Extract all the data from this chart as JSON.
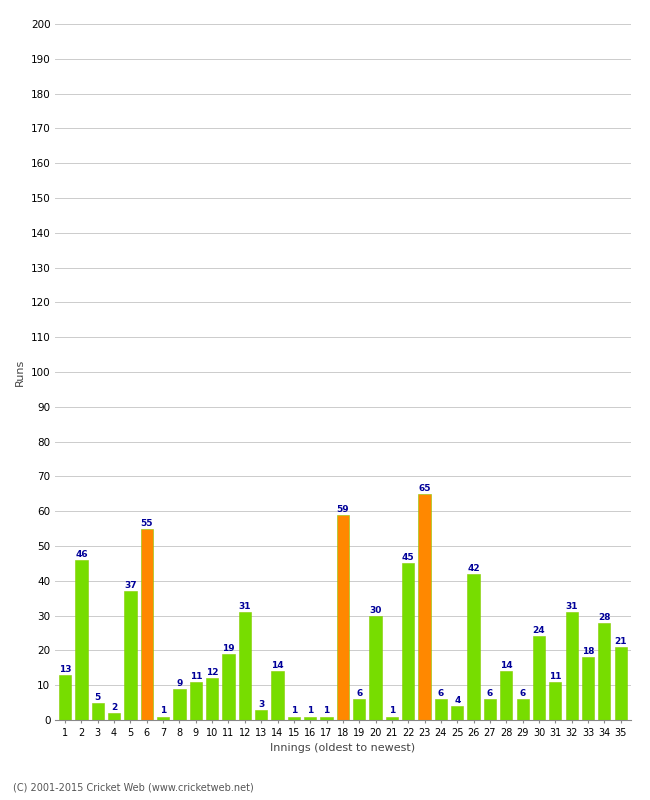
{
  "innings": [
    1,
    2,
    3,
    4,
    5,
    6,
    7,
    8,
    9,
    10,
    11,
    12,
    13,
    14,
    15,
    16,
    17,
    18,
    19,
    20,
    21,
    22,
    23,
    24,
    25,
    26,
    27,
    28,
    29,
    30,
    31,
    32,
    33,
    34,
    35
  ],
  "runs": [
    13,
    46,
    5,
    2,
    37,
    55,
    1,
    9,
    11,
    12,
    19,
    31,
    3,
    14,
    1,
    1,
    1,
    59,
    6,
    30,
    1,
    45,
    65,
    6,
    4,
    42,
    6,
    14,
    6,
    24,
    11,
    31,
    18,
    28,
    21
  ],
  "colors": [
    "#77dd00",
    "#77dd00",
    "#77dd00",
    "#77dd00",
    "#77dd00",
    "#ff8800",
    "#77dd00",
    "#77dd00",
    "#77dd00",
    "#77dd00",
    "#77dd00",
    "#77dd00",
    "#77dd00",
    "#77dd00",
    "#77dd00",
    "#77dd00",
    "#77dd00",
    "#ff8800",
    "#77dd00",
    "#77dd00",
    "#77dd00",
    "#77dd00",
    "#ff8800",
    "#77dd00",
    "#77dd00",
    "#77dd00",
    "#77dd00",
    "#77dd00",
    "#77dd00",
    "#77dd00",
    "#77dd00",
    "#77dd00",
    "#77dd00",
    "#77dd00",
    "#77dd00"
  ],
  "ylim": [
    0,
    200
  ],
  "yticks": [
    0,
    10,
    20,
    30,
    40,
    50,
    60,
    70,
    80,
    90,
    100,
    110,
    120,
    130,
    140,
    150,
    160,
    170,
    180,
    190,
    200
  ],
  "ylabel": "Runs",
  "xlabel": "Innings (oldest to newest)",
  "footnote": "(C) 2001-2015 Cricket Web (www.cricketweb.net)",
  "bar_edge_color": "#88cc00",
  "label_color": "#000099",
  "label_fontsize": 6.5,
  "grid_color": "#cccccc",
  "bg_color": "#ffffff",
  "fig_width": 6.5,
  "fig_height": 8.0,
  "bar_width": 0.75
}
